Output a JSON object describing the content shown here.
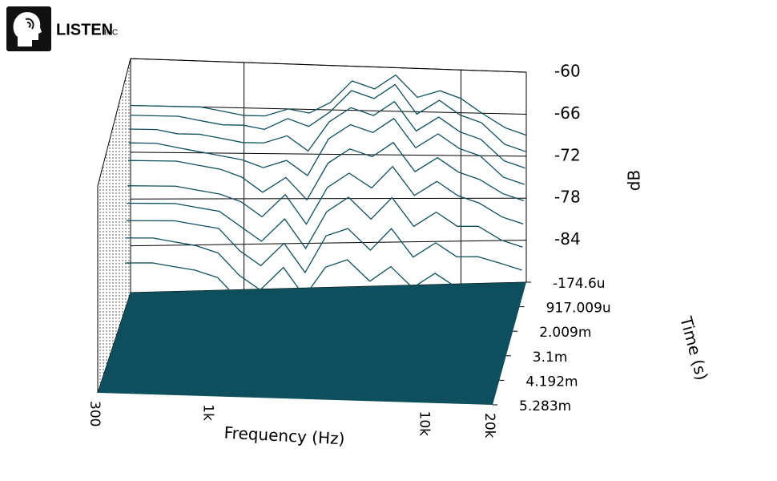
{
  "logo": {
    "name": "LISTEN",
    "suffix": "INC"
  },
  "chart_data": {
    "type": "waterfall",
    "x_label": "Frequency (Hz)",
    "y_label": "Time (s)",
    "z_label": "dB",
    "xscale": "log",
    "xlim": [
      300,
      20000
    ],
    "xticks": [
      300,
      {
        "value": 1000,
        "label": "1k"
      },
      {
        "value": 10000,
        "label": "10k"
      },
      {
        "value": 20000,
        "label": "20k"
      }
    ],
    "ylim": [
      -0.0001746,
      0.005283
    ],
    "yticks": [
      {
        "value": -0.0001746,
        "label": "-174.6u"
      },
      {
        "value": 0.000917009,
        "label": "917.009u"
      },
      {
        "value": 0.002009,
        "label": "2.009m"
      },
      {
        "value": 0.0031,
        "label": "3.1m"
      },
      {
        "value": 0.004192,
        "label": "4.192m"
      },
      {
        "value": 0.005283,
        "label": "5.283m"
      }
    ],
    "zlim": [
      -90,
      -60
    ],
    "zticks": [
      -60,
      -66,
      -72,
      -78,
      -84
    ],
    "grid": true,
    "color": "#0d4f5c",
    "frequencies": [
      300,
      400,
      500,
      630,
      800,
      1000,
      1250,
      1600,
      2000,
      2500,
      3150,
      4000,
      5000,
      6300,
      8000,
      10000,
      12500,
      16000,
      20000
    ],
    "slices": [
      {
        "time": -0.0001746,
        "values": [
          -66,
          -66,
          -66,
          -66,
          -66.5,
          -67,
          -67,
          -66,
          -66.5,
          -65,
          -62,
          -63,
          -61,
          -64,
          -63,
          -64,
          -66,
          -68,
          -69
        ]
      },
      {
        "time": -8e-05,
        "values": [
          -67,
          -67,
          -67,
          -67.5,
          -68,
          -68,
          -68.5,
          -67,
          -68,
          -66,
          -63,
          -64,
          -62,
          -66,
          -64,
          -66,
          -67,
          -70,
          -71
        ]
      },
      {
        "time": 2e-05,
        "values": [
          -68.5,
          -68.5,
          -69,
          -69,
          -69.5,
          -70,
          -70,
          -69,
          -71,
          -67,
          -65,
          -66,
          -64,
          -68,
          -66,
          -68,
          -69,
          -72,
          -73
        ]
      },
      {
        "time": 0.00012,
        "values": [
          -70,
          -70,
          -70.5,
          -71,
          -71.5,
          -72,
          -73,
          -72,
          -74,
          -69,
          -67,
          -68,
          -66,
          -70,
          -68,
          -70,
          -71,
          -74,
          -75
        ]
      },
      {
        "time": 0.00022,
        "values": [
          -72,
          -72,
          -72,
          -72.5,
          -73,
          -74,
          -76,
          -74,
          -77,
          -72,
          -70,
          -71,
          -69,
          -73,
          -71,
          -73,
          -74,
          -76,
          -77
        ]
      },
      {
        "time": 0.00032,
        "values": [
          -75,
          -75,
          -75,
          -75.5,
          -76,
          -77,
          -79,
          -76,
          -80,
          -75,
          -73,
          -75,
          -72,
          -76,
          -74,
          -76,
          -77,
          -79,
          -80
        ]
      },
      {
        "time": 0.00042,
        "values": [
          -77,
          -77,
          -77,
          -77.5,
          -78,
          -80,
          -82,
          -79,
          -83,
          -78,
          -76,
          -79,
          -76,
          -80,
          -78,
          -80,
          -80,
          -82,
          -83
        ]
      },
      {
        "time": 0.00052,
        "values": [
          -79,
          -79,
          -79,
          -79.5,
          -80,
          -83,
          -85,
          -82,
          -86,
          -81,
          -80,
          -83,
          -80,
          -84,
          -82,
          -84,
          -84,
          -85,
          -86
        ]
      },
      {
        "time": 0.00062,
        "values": [
          -81,
          -81,
          -81.5,
          -82,
          -83,
          -86,
          -88,
          -85,
          -89,
          -85,
          -84,
          -87,
          -85,
          -88,
          -86,
          -88,
          -88,
          -89,
          -89
        ]
      },
      {
        "time": 0.00072,
        "values": [
          -84,
          -84,
          -84.5,
          -85,
          -86,
          -89,
          -90,
          -88,
          -90,
          -88,
          -88,
          -90,
          -89,
          -90,
          -89,
          -90,
          -90,
          -90,
          -90
        ]
      }
    ]
  }
}
